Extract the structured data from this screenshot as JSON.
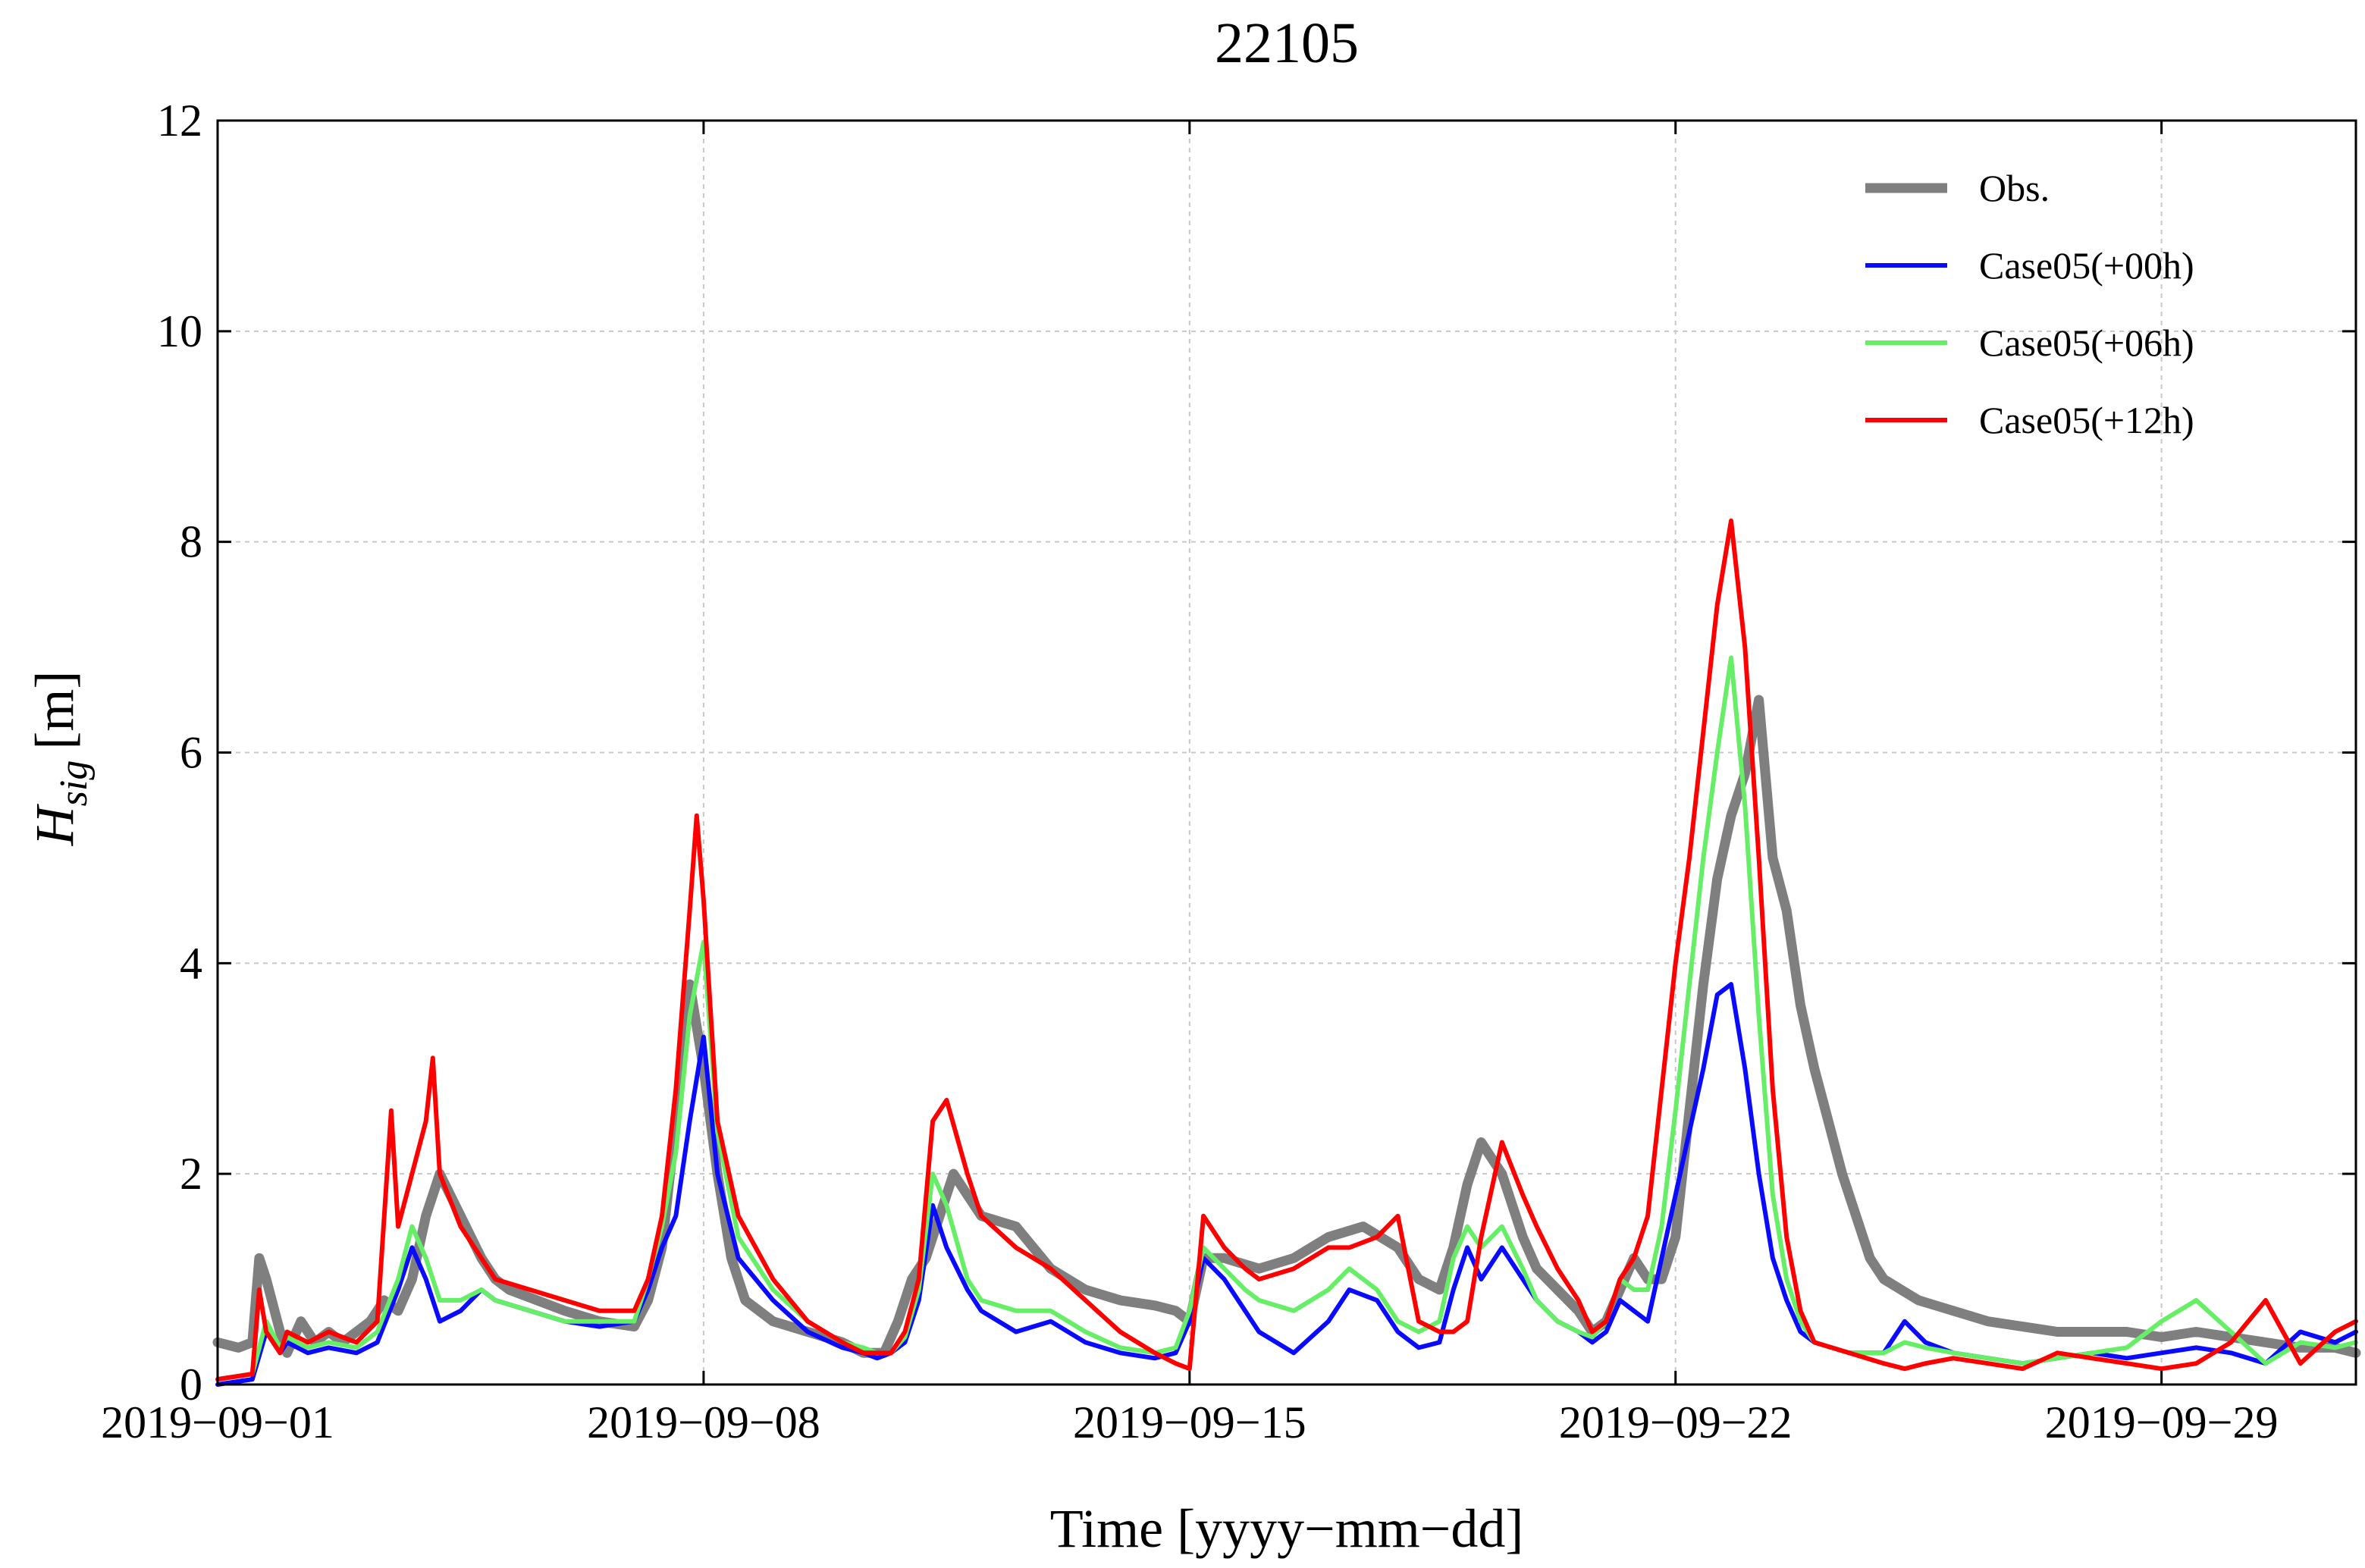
{
  "chart_data": {
    "type": "line",
    "title": "22105",
    "xlabel": "Time [yyyy−mm−dd]",
    "ylabel": "H",
    "ylabel_subscript": "sig",
    "ylabel_unit": "[m]",
    "xlim": [
      0,
      30.8
    ],
    "ylim": [
      0,
      12
    ],
    "x_unit": "days since 2019-09-01",
    "x_ticks": [
      {
        "value": 0,
        "label": "2019−09−01"
      },
      {
        "value": 7,
        "label": "2019−09−08"
      },
      {
        "value": 14,
        "label": "2019−09−15"
      },
      {
        "value": 21,
        "label": "2019−09−22"
      },
      {
        "value": 28,
        "label": "2019−09−29"
      }
    ],
    "y_ticks": [
      {
        "value": 0,
        "label": "0"
      },
      {
        "value": 2,
        "label": "2"
      },
      {
        "value": 4,
        "label": "4"
      },
      {
        "value": 6,
        "label": "6"
      },
      {
        "value": 8,
        "label": "8"
      },
      {
        "value": 10,
        "label": "10"
      },
      {
        "value": 12,
        "label": "12"
      }
    ],
    "grid": true,
    "legend_position": "top-right",
    "series": [
      {
        "name": "Obs.",
        "color": "#7f7f7f",
        "line_weight": "thick",
        "x": [
          0,
          0.3,
          0.5,
          0.6,
          0.7,
          0.9,
          1.0,
          1.2,
          1.4,
          1.6,
          1.8,
          2.0,
          2.2,
          2.4,
          2.6,
          2.8,
          3.0,
          3.2,
          3.5,
          3.8,
          4.0,
          4.2,
          4.6,
          5.0,
          5.5,
          6.0,
          6.2,
          6.4,
          6.6,
          6.8,
          7.0,
          7.2,
          7.4,
          7.6,
          8.0,
          8.5,
          9.0,
          9.3,
          9.6,
          9.8,
          10.0,
          10.2,
          10.4,
          10.6,
          10.8,
          11.0,
          11.5,
          12.0,
          12.5,
          13.0,
          13.5,
          13.8,
          14.0,
          14.2,
          14.5,
          15.0,
          15.5,
          16.0,
          16.5,
          17.0,
          17.3,
          17.6,
          17.8,
          18.0,
          18.2,
          18.5,
          18.8,
          19.0,
          19.3,
          19.6,
          19.8,
          20.0,
          20.2,
          20.4,
          20.6,
          20.8,
          21.0,
          21.2,
          21.4,
          21.6,
          21.8,
          22.0,
          22.2,
          22.4,
          22.6,
          22.8,
          23.0,
          23.2,
          23.4,
          23.6,
          23.8,
          24.0,
          24.5,
          25.0,
          25.5,
          26.0,
          26.5,
          27.0,
          27.5,
          28.0,
          28.5,
          29.0,
          29.5,
          30.0,
          30.5,
          30.8
        ],
        "y": [
          0.4,
          0.35,
          0.4,
          1.2,
          1.0,
          0.5,
          0.3,
          0.6,
          0.4,
          0.5,
          0.4,
          0.5,
          0.6,
          0.8,
          0.7,
          1.0,
          1.6,
          2.0,
          1.6,
          1.2,
          1.0,
          0.9,
          0.8,
          0.7,
          0.6,
          0.55,
          0.8,
          1.3,
          2.5,
          3.8,
          3.0,
          2.0,
          1.2,
          0.8,
          0.6,
          0.5,
          0.4,
          0.3,
          0.3,
          0.6,
          1.0,
          1.2,
          1.6,
          2.0,
          1.8,
          1.6,
          1.5,
          1.1,
          0.9,
          0.8,
          0.75,
          0.7,
          0.6,
          1.2,
          1.2,
          1.1,
          1.2,
          1.4,
          1.5,
          1.3,
          1.0,
          0.9,
          1.3,
          1.9,
          2.3,
          2.0,
          1.4,
          1.1,
          0.9,
          0.7,
          0.5,
          0.6,
          0.9,
          1.2,
          1.0,
          1.0,
          1.4,
          2.6,
          3.8,
          4.8,
          5.4,
          5.8,
          6.5,
          5.0,
          4.5,
          3.6,
          3.0,
          2.5,
          2.0,
          1.6,
          1.2,
          1.0,
          0.8,
          0.7,
          0.6,
          0.55,
          0.5,
          0.5,
          0.5,
          0.45,
          0.5,
          0.45,
          0.4,
          0.35,
          0.35,
          0.3
        ]
      },
      {
        "name": "Case05(+00h)",
        "color": "#0a0aff",
        "line_weight": "normal",
        "x": [
          0,
          0.5,
          0.7,
          0.9,
          1.0,
          1.3,
          1.6,
          2.0,
          2.3,
          2.6,
          2.8,
          3.0,
          3.2,
          3.5,
          3.8,
          4.0,
          4.5,
          5.0,
          5.5,
          6.0,
          6.2,
          6.4,
          6.6,
          6.8,
          7.0,
          7.2,
          7.5,
          8.0,
          8.5,
          9.0,
          9.3,
          9.5,
          9.7,
          9.9,
          10.1,
          10.3,
          10.5,
          10.8,
          11.0,
          11.5,
          12.0,
          12.5,
          13.0,
          13.5,
          13.8,
          14.0,
          14.2,
          14.5,
          14.8,
          15.0,
          15.5,
          16.0,
          16.3,
          16.7,
          17.0,
          17.3,
          17.6,
          17.8,
          18.0,
          18.2,
          18.5,
          18.8,
          19.0,
          19.3,
          19.6,
          19.8,
          20.0,
          20.2,
          20.4,
          20.6,
          20.8,
          21.0,
          21.2,
          21.4,
          21.6,
          21.8,
          22.0,
          22.2,
          22.4,
          22.6,
          22.8,
          23.0,
          23.5,
          24.0,
          24.3,
          24.6,
          25.0,
          25.5,
          26.0,
          26.5,
          27.0,
          27.5,
          28.0,
          28.5,
          29.0,
          29.5,
          30.0,
          30.5,
          30.8
        ],
        "y": [
          0.0,
          0.05,
          0.5,
          0.3,
          0.4,
          0.3,
          0.35,
          0.3,
          0.4,
          0.9,
          1.3,
          1.0,
          0.6,
          0.7,
          0.9,
          0.8,
          0.7,
          0.6,
          0.55,
          0.6,
          0.9,
          1.3,
          1.6,
          2.5,
          3.3,
          2.0,
          1.2,
          0.8,
          0.5,
          0.35,
          0.3,
          0.25,
          0.3,
          0.4,
          0.8,
          1.7,
          1.3,
          0.9,
          0.7,
          0.5,
          0.6,
          0.4,
          0.3,
          0.25,
          0.3,
          0.6,
          1.2,
          1.0,
          0.7,
          0.5,
          0.3,
          0.6,
          0.9,
          0.8,
          0.5,
          0.35,
          0.4,
          0.9,
          1.3,
          1.0,
          1.3,
          1.0,
          0.8,
          0.6,
          0.5,
          0.4,
          0.5,
          0.8,
          0.7,
          0.6,
          1.2,
          1.8,
          2.4,
          3.0,
          3.7,
          3.8,
          3.0,
          2.0,
          1.2,
          0.8,
          0.5,
          0.4,
          0.3,
          0.3,
          0.6,
          0.4,
          0.3,
          0.25,
          0.2,
          0.25,
          0.3,
          0.25,
          0.3,
          0.35,
          0.3,
          0.2,
          0.5,
          0.4,
          0.5
        ]
      },
      {
        "name": "Case05(+06h)",
        "color": "#66ee66",
        "line_weight": "normal",
        "x": [
          0,
          0.5,
          0.7,
          0.9,
          1.0,
          1.3,
          1.6,
          2.0,
          2.3,
          2.6,
          2.8,
          3.0,
          3.2,
          3.5,
          3.8,
          4.0,
          4.5,
          5.0,
          5.5,
          6.0,
          6.2,
          6.4,
          6.6,
          6.8,
          7.0,
          7.2,
          7.5,
          8.0,
          8.5,
          9.0,
          9.3,
          9.5,
          9.7,
          9.9,
          10.1,
          10.3,
          10.5,
          10.8,
          11.0,
          11.5,
          12.0,
          12.5,
          13.0,
          13.5,
          13.8,
          14.0,
          14.2,
          14.5,
          14.8,
          15.0,
          15.5,
          16.0,
          16.3,
          16.7,
          17.0,
          17.3,
          17.6,
          17.8,
          18.0,
          18.2,
          18.5,
          18.8,
          19.0,
          19.3,
          19.6,
          19.8,
          20.0,
          20.2,
          20.4,
          20.6,
          20.8,
          21.0,
          21.2,
          21.4,
          21.6,
          21.8,
          22.0,
          22.2,
          22.4,
          22.6,
          22.8,
          23.0,
          23.5,
          24.0,
          24.3,
          24.6,
          25.0,
          25.5,
          26.0,
          26.5,
          27.0,
          27.5,
          28.0,
          28.5,
          29.0,
          29.5,
          30.0,
          30.5,
          30.8
        ],
        "y": [
          0.05,
          0.1,
          0.6,
          0.35,
          0.45,
          0.35,
          0.4,
          0.35,
          0.5,
          1.0,
          1.5,
          1.2,
          0.8,
          0.8,
          0.9,
          0.8,
          0.7,
          0.6,
          0.6,
          0.6,
          1.0,
          1.5,
          2.2,
          3.5,
          4.2,
          2.4,
          1.4,
          0.9,
          0.6,
          0.4,
          0.35,
          0.3,
          0.3,
          0.45,
          0.9,
          2.0,
          1.7,
          1.0,
          0.8,
          0.7,
          0.7,
          0.5,
          0.35,
          0.3,
          0.35,
          0.7,
          1.3,
          1.1,
          0.9,
          0.8,
          0.7,
          0.9,
          1.1,
          0.9,
          0.6,
          0.5,
          0.6,
          1.2,
          1.5,
          1.3,
          1.5,
          1.1,
          0.8,
          0.6,
          0.5,
          0.45,
          0.6,
          1.0,
          0.9,
          0.9,
          1.5,
          2.6,
          3.8,
          5.0,
          6.0,
          6.9,
          5.5,
          3.5,
          1.8,
          1.0,
          0.6,
          0.4,
          0.3,
          0.3,
          0.4,
          0.35,
          0.3,
          0.25,
          0.2,
          0.25,
          0.3,
          0.35,
          0.6,
          0.8,
          0.5,
          0.2,
          0.4,
          0.35,
          0.4
        ]
      },
      {
        "name": "Case05(+12h)",
        "color": "#ff0000",
        "line_weight": "normal",
        "x": [
          0,
          0.5,
          0.6,
          0.7,
          0.9,
          1.0,
          1.3,
          1.6,
          2.0,
          2.3,
          2.5,
          2.6,
          2.8,
          3.0,
          3.1,
          3.2,
          3.5,
          3.8,
          4.0,
          4.5,
          5.0,
          5.5,
          6.0,
          6.2,
          6.4,
          6.6,
          6.8,
          6.9,
          7.0,
          7.2,
          7.5,
          8.0,
          8.5,
          9.0,
          9.3,
          9.5,
          9.7,
          9.9,
          10.1,
          10.3,
          10.5,
          10.8,
          11.0,
          11.5,
          12.0,
          12.5,
          13.0,
          13.5,
          13.8,
          14.0,
          14.2,
          14.5,
          14.8,
          15.0,
          15.5,
          16.0,
          16.3,
          16.7,
          17.0,
          17.3,
          17.6,
          17.8,
          18.0,
          18.2,
          18.5,
          18.8,
          19.0,
          19.3,
          19.6,
          19.8,
          20.0,
          20.2,
          20.4,
          20.6,
          20.8,
          21.0,
          21.2,
          21.4,
          21.6,
          21.8,
          22.0,
          22.2,
          22.4,
          22.6,
          22.8,
          23.0,
          23.5,
          24.0,
          24.3,
          24.6,
          25.0,
          25.5,
          26.0,
          26.5,
          27.0,
          27.5,
          28.0,
          28.5,
          29.0,
          29.5,
          30.0,
          30.5,
          30.8
        ],
        "y": [
          0.05,
          0.1,
          0.9,
          0.5,
          0.3,
          0.5,
          0.4,
          0.5,
          0.4,
          0.6,
          2.6,
          1.5,
          2.0,
          2.5,
          3.1,
          2.0,
          1.5,
          1.2,
          1.0,
          0.9,
          0.8,
          0.7,
          0.7,
          1.0,
          1.6,
          2.8,
          4.5,
          5.4,
          4.6,
          2.5,
          1.6,
          1.0,
          0.6,
          0.4,
          0.3,
          0.3,
          0.3,
          0.5,
          1.0,
          2.5,
          2.7,
          2.0,
          1.6,
          1.3,
          1.1,
          0.8,
          0.5,
          0.3,
          0.2,
          0.15,
          1.6,
          1.3,
          1.1,
          1.0,
          1.1,
          1.3,
          1.3,
          1.4,
          1.6,
          0.6,
          0.5,
          0.5,
          0.6,
          1.4,
          2.3,
          1.8,
          1.5,
          1.1,
          0.8,
          0.5,
          0.6,
          1.0,
          1.2,
          1.6,
          2.8,
          4.0,
          5.0,
          6.2,
          7.4,
          8.2,
          7.0,
          5.0,
          2.8,
          1.4,
          0.7,
          0.4,
          0.3,
          0.2,
          0.15,
          0.2,
          0.25,
          0.2,
          0.15,
          0.3,
          0.25,
          0.2,
          0.15,
          0.2,
          0.4,
          0.8,
          0.2,
          0.5,
          0.6
        ]
      }
    ]
  }
}
